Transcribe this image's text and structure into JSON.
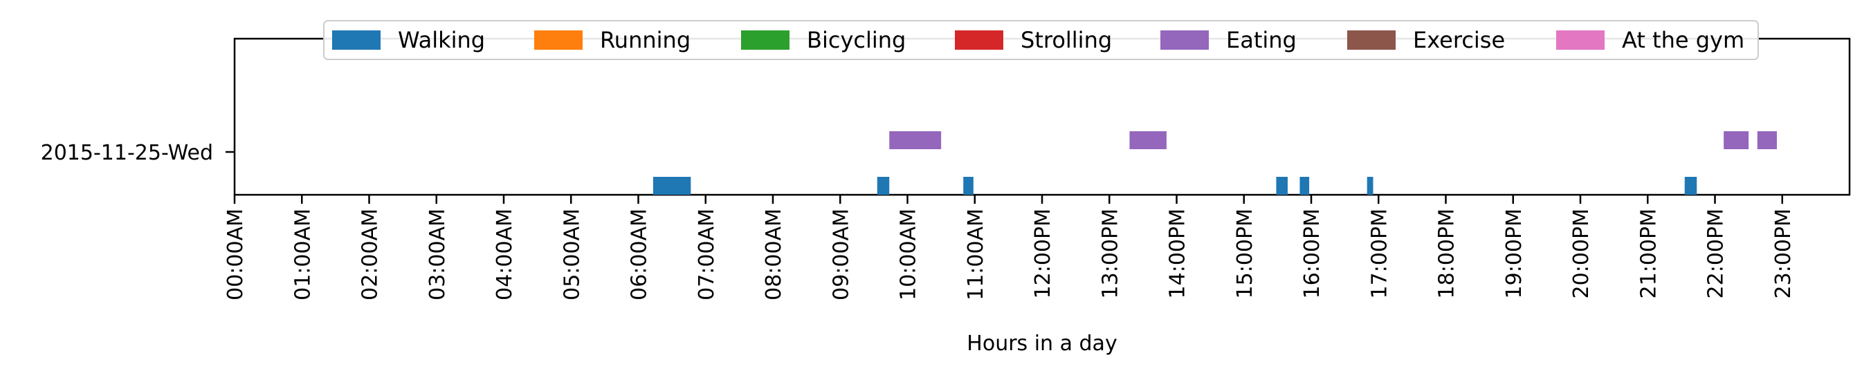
{
  "chart_data": {
    "type": "timeline",
    "xlabel": "Hours in a day",
    "ylabel": "",
    "xlim": [
      0,
      24
    ],
    "x_ticks": [
      "00:00AM",
      "01:00AM",
      "02:00AM",
      "03:00AM",
      "04:00AM",
      "05:00AM",
      "06:00AM",
      "07:00AM",
      "08:00AM",
      "09:00AM",
      "10:00AM",
      "11:00AM",
      "12:00PM",
      "13:00PM",
      "14:00PM",
      "15:00PM",
      "16:00PM",
      "17:00PM",
      "18:00PM",
      "19:00PM",
      "20:00PM",
      "21:00PM",
      "22:00PM",
      "23:00PM"
    ],
    "y_ticks": [
      "2015-11-25-Wed"
    ],
    "legend": {
      "placement": "top-center",
      "entries": [
        {
          "label": "Walking",
          "color": "#1f77b4"
        },
        {
          "label": "Running",
          "color": "#ff7f0e"
        },
        {
          "label": "Bicycling",
          "color": "#2ca02c"
        },
        {
          "label": "Strolling",
          "color": "#d62728"
        },
        {
          "label": "Eating",
          "color": "#9467bd"
        },
        {
          "label": "Exercise",
          "color": "#8c564b"
        },
        {
          "label": "At the gym",
          "color": "#e377c2"
        }
      ]
    },
    "series": [
      {
        "name": "Walking",
        "color": "#1f77b4",
        "intervals": [
          [
            6.22,
            6.78
          ],
          [
            9.55,
            9.73
          ],
          [
            10.83,
            10.98
          ],
          [
            15.48,
            15.65
          ],
          [
            15.83,
            15.97
          ],
          [
            16.83,
            16.92
          ],
          [
            21.55,
            21.73
          ]
        ]
      },
      {
        "name": "Eating",
        "color": "#9467bd",
        "intervals": [
          [
            9.73,
            10.5
          ],
          [
            13.3,
            13.85
          ],
          [
            22.13,
            22.5
          ],
          [
            22.63,
            22.92
          ]
        ]
      }
    ]
  }
}
